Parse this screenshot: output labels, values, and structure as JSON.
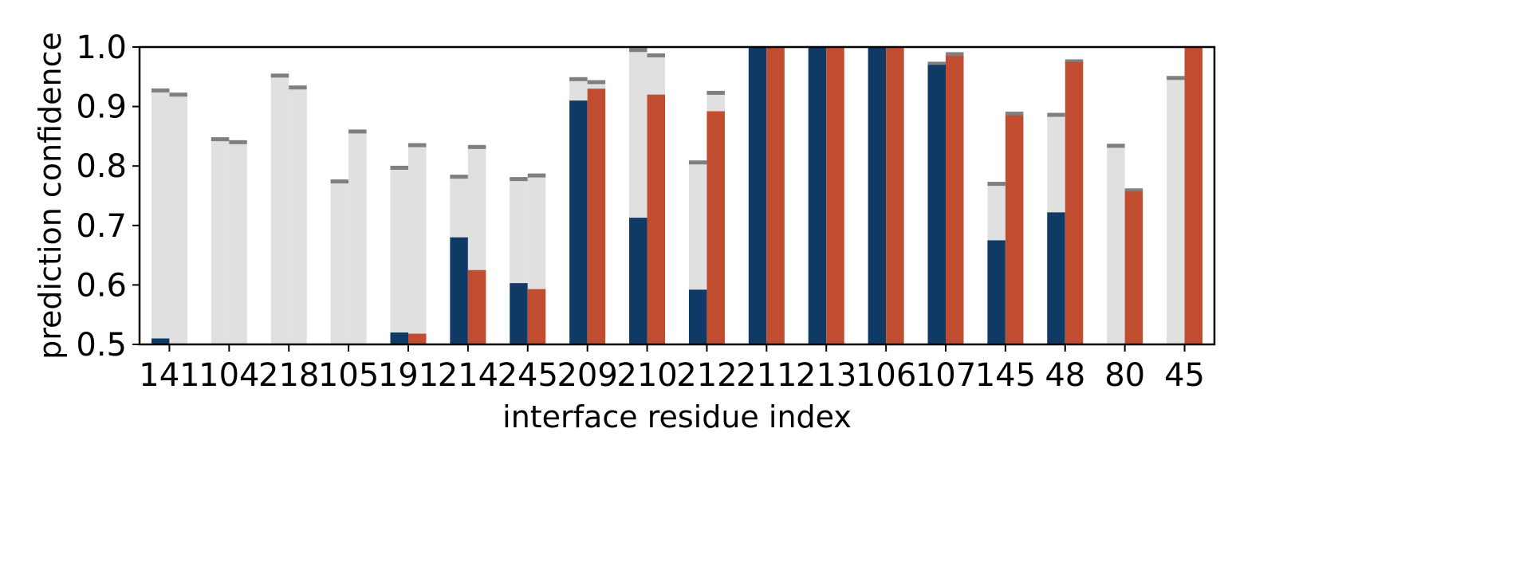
{
  "chart_data": {
    "type": "bar",
    "xlabel": "interface residue index",
    "ylabel": "prediction confidence",
    "ylim": [
      0.5,
      1.0
    ],
    "yticks": [
      "0.5",
      "0.6",
      "0.7",
      "0.8",
      "0.9",
      "1.0"
    ],
    "categories": [
      "141",
      "104",
      "218",
      "105",
      "191",
      "214",
      "245",
      "209",
      "210",
      "212",
      "211",
      "213",
      "106",
      "107",
      "145",
      "48",
      "80",
      "45"
    ],
    "series": [
      {
        "color": "#0f3a66",
        "values": [
          0.51,
          null,
          null,
          null,
          0.52,
          0.68,
          0.603,
          0.91,
          0.713,
          0.592,
          1.0,
          1.0,
          1.0,
          0.97,
          0.675,
          0.722,
          null,
          null
        ],
        "background_values": [
          0.927,
          0.845,
          0.952,
          0.774,
          0.797,
          0.782,
          0.778,
          0.946,
          0.995,
          0.806,
          1.0,
          1.0,
          1.0,
          0.972,
          0.77,
          0.886,
          0.834,
          0.948
        ]
      },
      {
        "color": "#c14d30",
        "values": [
          null,
          null,
          null,
          null,
          0.518,
          0.625,
          0.593,
          0.93,
          0.92,
          0.892,
          1.0,
          1.0,
          1.0,
          0.985,
          0.885,
          0.975,
          0.757,
          1.0
        ],
        "background_values": [
          0.92,
          0.84,
          0.932,
          0.858,
          0.835,
          0.832,
          0.784,
          0.941,
          0.986,
          0.923,
          1.0,
          1.0,
          1.0,
          0.988,
          0.888,
          0.976,
          0.759,
          1.0
        ]
      }
    ],
    "background_color": "#e0e0e0",
    "marker_color": "#7f7f7f",
    "grid": false,
    "legend": false
  }
}
